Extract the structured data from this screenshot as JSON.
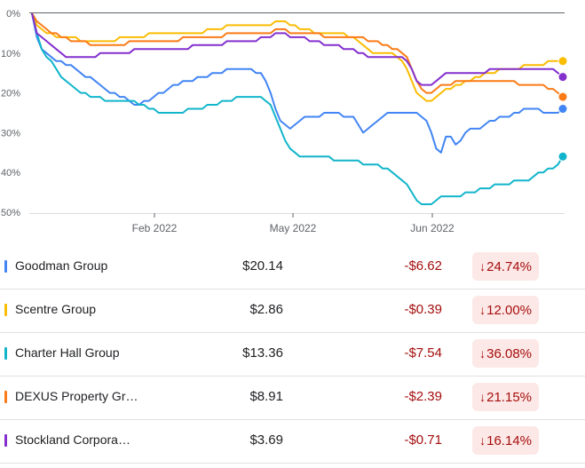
{
  "chart_data": {
    "type": "line",
    "ylabel": "",
    "xlabel": "",
    "y_ticks": [
      "0%",
      "10%",
      "20%",
      "30%",
      "40%",
      "50%"
    ],
    "ylim": [
      0,
      50
    ],
    "y_inverted": true,
    "x_ticks": [
      "Feb 2022",
      "May 2022",
      "Jun 2022"
    ],
    "grid": "top baseline only",
    "series": [
      {
        "name": "Goodman Group",
        "color": "#4285f4",
        "values": [
          0,
          6,
          9,
          10,
          11,
          12,
          12,
          13,
          13,
          14,
          15,
          16,
          16,
          17,
          18,
          19,
          20,
          20,
          21,
          21,
          22,
          23,
          23,
          22,
          22,
          21,
          20,
          20,
          19,
          18,
          18,
          17,
          17,
          17,
          16,
          16,
          16,
          15,
          15,
          15,
          14,
          14,
          14,
          14,
          14,
          14,
          15,
          15,
          17,
          20,
          24,
          27,
          28,
          29,
          28,
          27,
          26,
          26,
          26,
          26,
          25,
          25,
          25,
          25,
          26,
          26,
          26,
          28,
          30,
          29,
          28,
          27,
          26,
          25,
          25,
          25,
          25,
          25,
          25,
          25,
          26,
          27,
          30,
          34,
          35,
          31,
          31,
          33,
          32,
          30,
          29,
          29,
          29,
          28,
          27,
          27,
          26,
          26,
          26,
          25,
          25,
          24,
          24,
          24,
          24,
          25,
          25,
          25,
          25,
          24
        ]
      },
      {
        "name": "Scentre Group",
        "color": "#fbbc04",
        "values": [
          0,
          3,
          4,
          5,
          5,
          6,
          6,
          6,
          6,
          6,
          7,
          7,
          7,
          7,
          7,
          7,
          7,
          7,
          6,
          6,
          6,
          6,
          6,
          6,
          5,
          5,
          5,
          5,
          5,
          5,
          5,
          5,
          5,
          5,
          5,
          5,
          4,
          4,
          4,
          4,
          3,
          3,
          3,
          3,
          3,
          3,
          3,
          3,
          3,
          3,
          2,
          2,
          2,
          3,
          3,
          4,
          4,
          4,
          5,
          5,
          5,
          5,
          5,
          5,
          5,
          6,
          6,
          7,
          8,
          9,
          10,
          10,
          10,
          10,
          10,
          11,
          12,
          14,
          17,
          20,
          21,
          22,
          22,
          21,
          20,
          19,
          19,
          18,
          18,
          17,
          17,
          16,
          16,
          15,
          15,
          15,
          14,
          14,
          14,
          14,
          14,
          13,
          13,
          13,
          13,
          13,
          12,
          12,
          12,
          12
        ]
      },
      {
        "name": "Charter Hall Group",
        "color": "#12b5cb",
        "values": [
          0,
          5,
          9,
          11,
          12,
          14,
          16,
          17,
          18,
          19,
          20,
          20,
          21,
          21,
          21,
          22,
          22,
          22,
          22,
          22,
          22,
          22,
          23,
          23,
          24,
          24,
          25,
          25,
          25,
          25,
          25,
          25,
          24,
          24,
          24,
          24,
          23,
          23,
          23,
          22,
          22,
          22,
          21,
          21,
          21,
          21,
          21,
          21,
          22,
          23,
          26,
          29,
          32,
          34,
          35,
          36,
          36,
          36,
          36,
          36,
          36,
          36,
          37,
          37,
          37,
          37,
          37,
          37,
          38,
          38,
          38,
          38,
          39,
          39,
          40,
          41,
          42,
          43,
          45,
          47,
          48,
          48,
          48,
          47,
          46,
          46,
          46,
          46,
          46,
          45,
          45,
          45,
          44,
          44,
          44,
          43,
          43,
          43,
          43,
          42,
          42,
          42,
          42,
          41,
          40,
          40,
          39,
          39,
          38,
          36
        ]
      },
      {
        "name": "DEXUS Property Gr…",
        "color": "#fa7b17",
        "values": [
          0,
          2,
          3,
          4,
          5,
          5,
          6,
          6,
          7,
          7,
          7,
          7,
          8,
          8,
          8,
          8,
          8,
          8,
          8,
          8,
          7,
          7,
          7,
          7,
          7,
          7,
          7,
          7,
          7,
          7,
          7,
          6,
          6,
          6,
          6,
          6,
          6,
          6,
          6,
          6,
          5,
          5,
          5,
          5,
          5,
          5,
          5,
          5,
          5,
          5,
          4,
          4,
          4,
          5,
          5,
          5,
          5,
          5,
          5,
          5,
          6,
          6,
          6,
          6,
          6,
          6,
          6,
          6,
          6,
          7,
          7,
          7,
          8,
          8,
          9,
          9,
          10,
          11,
          14,
          17,
          19,
          20,
          20,
          19,
          18,
          18,
          18,
          17,
          17,
          17,
          17,
          17,
          17,
          17,
          17,
          17,
          17,
          17,
          17,
          17,
          18,
          18,
          18,
          18,
          18,
          18,
          19,
          19,
          20,
          21
        ]
      },
      {
        "name": "Stockland Corpora…",
        "color": "#8430ce",
        "values": [
          0,
          5,
          6,
          7,
          8,
          9,
          10,
          11,
          11,
          11,
          11,
          11,
          11,
          11,
          10,
          10,
          10,
          10,
          10,
          10,
          10,
          9,
          9,
          9,
          9,
          9,
          9,
          9,
          9,
          9,
          9,
          9,
          9,
          8,
          8,
          8,
          8,
          8,
          8,
          8,
          7,
          7,
          7,
          7,
          7,
          7,
          7,
          6,
          6,
          6,
          5,
          5,
          5,
          6,
          6,
          6,
          6,
          7,
          7,
          7,
          8,
          8,
          8,
          8,
          9,
          9,
          9,
          10,
          10,
          11,
          11,
          11,
          11,
          11,
          11,
          11,
          11,
          12,
          14,
          17,
          18,
          18,
          18,
          17,
          16,
          15,
          15,
          15,
          15,
          15,
          15,
          15,
          15,
          15,
          14,
          14,
          14,
          14,
          14,
          14,
          14,
          14,
          14,
          14,
          14,
          14,
          14,
          14,
          15,
          16
        ]
      }
    ]
  },
  "table": {
    "rows": [
      {
        "name": "Goodman Group",
        "price": "$20.14",
        "change": "-$6.62",
        "percent": "24.74%",
        "color": "#4285f4"
      },
      {
        "name": "Scentre Group",
        "price": "$2.86",
        "change": "-$0.39",
        "percent": "12.00%",
        "color": "#fbbc04"
      },
      {
        "name": "Charter Hall Group",
        "price": "$13.36",
        "change": "-$7.54",
        "percent": "36.08%",
        "color": "#12b5cb"
      },
      {
        "name": "DEXUS Property Gr…",
        "price": "$8.91",
        "change": "-$2.39",
        "percent": "21.15%",
        "color": "#fa7b17"
      },
      {
        "name": "Stockland Corpora…",
        "price": "$3.69",
        "change": "-$0.71",
        "percent": "16.14%",
        "color": "#8430ce"
      }
    ],
    "down_arrow": "↓"
  }
}
